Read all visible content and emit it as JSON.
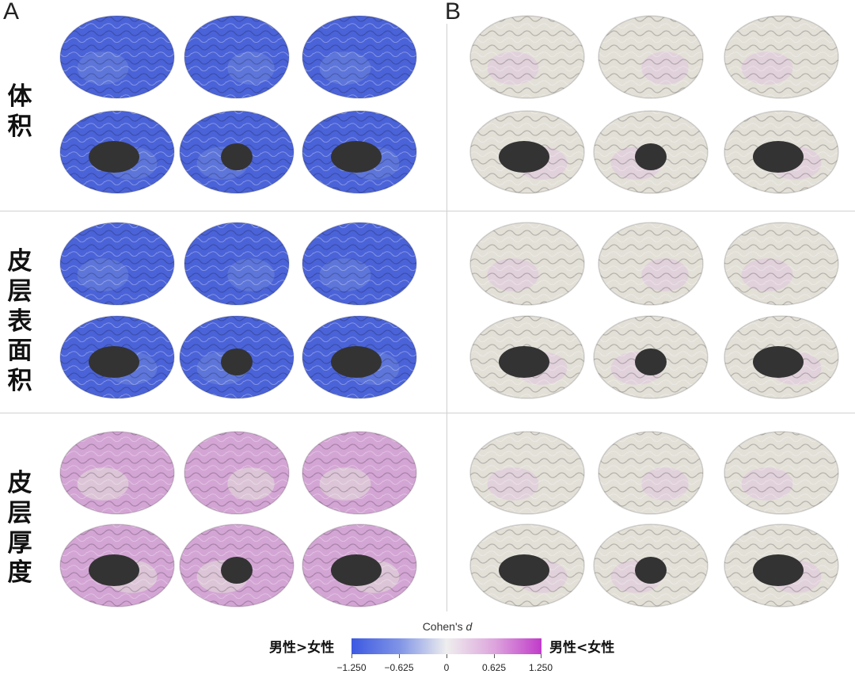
{
  "panels": {
    "left_label": "A",
    "right_label": "B"
  },
  "rows": [
    {
      "label_chars": [
        "体",
        "积"
      ]
    },
    {
      "label_chars": [
        "皮",
        "层",
        "表",
        "面",
        "积"
      ]
    },
    {
      "label_chars": [
        "皮",
        "层",
        "厚",
        "度"
      ]
    }
  ],
  "colors": {
    "blue_strong": "#4b63d8",
    "blue_mid": "#6f86dc",
    "neutral": "#e3e0d8",
    "pink_light": "#e0c4de",
    "pink_mid": "#d3a5d4",
    "midbrain": "#333333"
  },
  "legend": {
    "title": "Cohen's",
    "title_symbol": "d",
    "left_label": "男性>女性",
    "right_label": "男性<女性",
    "ticks": [
      "−1.250",
      "−0.625",
      "0",
      "0.625",
      "1.250"
    ]
  }
}
